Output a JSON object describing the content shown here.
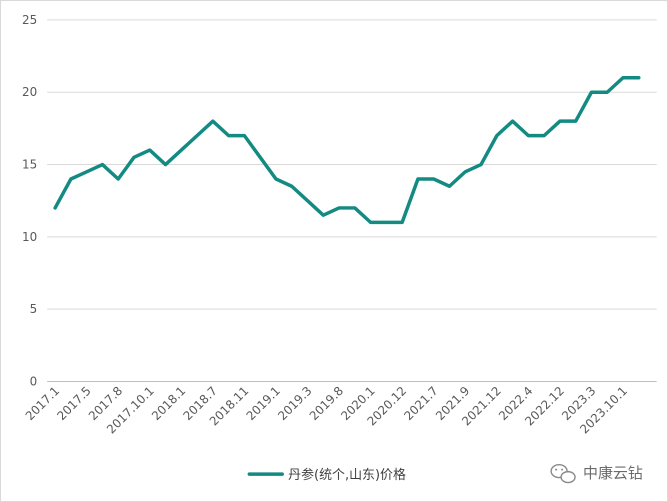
{
  "chart_data": {
    "type": "line",
    "title": "",
    "xlabel": "",
    "ylabel": "",
    "ylim": [
      0,
      25
    ],
    "yticks": [
      0,
      5,
      10,
      15,
      20,
      25
    ],
    "grid": true,
    "legend_position": "bottom",
    "x_tick_labels": [
      "2017.1",
      "2017.5",
      "2017.8",
      "2017.10.1",
      "2018.1",
      "2018.7",
      "2018.11",
      "2019.1",
      "2019.3",
      "2019.8",
      "2020.1",
      "2020.12",
      "2021.7",
      "2021.9",
      "2021.12",
      "2022.4",
      "2022.12",
      "2023.3",
      "2023.10.1"
    ],
    "series": [
      {
        "name": "丹参(统个,山东)价格",
        "color": "#138a82",
        "values": [
          12,
          14,
          14.5,
          15,
          14,
          15.5,
          16,
          15,
          16,
          17,
          18,
          17,
          17,
          15.5,
          14,
          13.5,
          12.5,
          11.5,
          12,
          12,
          11,
          11,
          11,
          14,
          14,
          13.5,
          14.5,
          15,
          17,
          18,
          17,
          17,
          18,
          18,
          20,
          20,
          21,
          21
        ]
      }
    ]
  },
  "watermark": {
    "text": "中康云钻",
    "icon": "wechat-icon"
  }
}
